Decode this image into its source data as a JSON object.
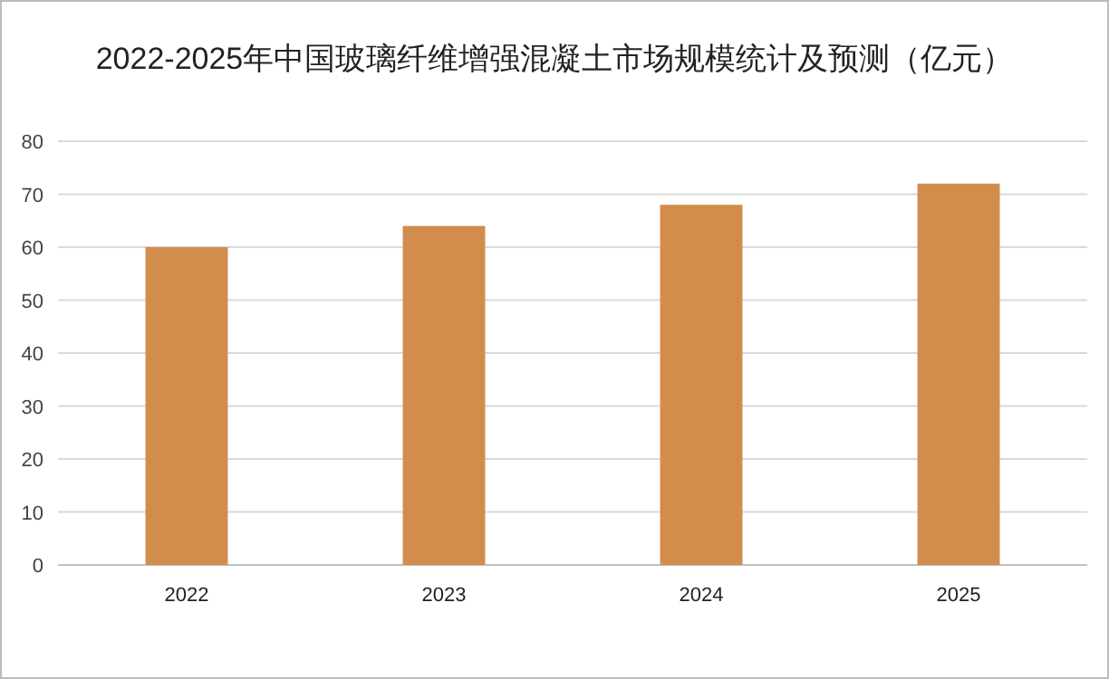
{
  "chart_data": {
    "type": "bar",
    "title": "2022-2025年中国玻璃纤维增强混凝土市场规模统计及预测（亿元）",
    "categories": [
      "2022",
      "2023",
      "2024",
      "2025"
    ],
    "values": [
      60,
      64,
      68,
      72
    ],
    "color": "#d28c4c",
    "ylim": [
      0,
      80
    ],
    "yticks": [
      0,
      10,
      20,
      30,
      40,
      50,
      60,
      70,
      80
    ],
    "grid": "y"
  }
}
